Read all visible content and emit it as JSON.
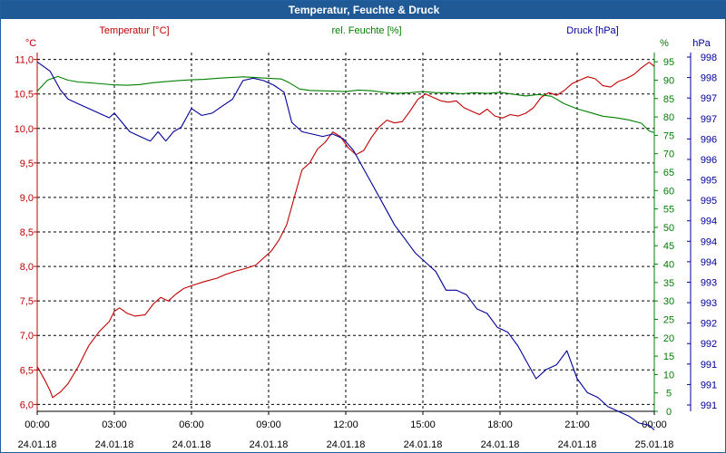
{
  "window": {
    "title": "Temperatur, Feuchte & Druck"
  },
  "chart_data": {
    "type": "line",
    "title": "Temperatur, Feuchte & Druck",
    "x_ticks": [
      {
        "time": "00:00",
        "date": "24.01.18"
      },
      {
        "time": "03:00",
        "date": "24.01.18"
      },
      {
        "time": "06:00",
        "date": "24.01.18"
      },
      {
        "time": "09:00",
        "date": "24.01.18"
      },
      {
        "time": "12:00",
        "date": "24.01.18"
      },
      {
        "time": "15:00",
        "date": "24.01.18"
      },
      {
        "time": "18:00",
        "date": "24.01.18"
      },
      {
        "time": "21:00",
        "date": "24.01.18"
      },
      {
        "time": "00:00",
        "date": "25.01.18"
      }
    ],
    "xlim_hours": [
      0,
      24
    ],
    "axes": {
      "temperature": {
        "label": "Temperatur [°C]",
        "unit": "°C",
        "color": "#c00000",
        "ylim": [
          5.9,
          11.1
        ],
        "ticks": [
          "6,0",
          "6,5",
          "7,0",
          "7,5",
          "8,0",
          "8,5",
          "9,0",
          "9,5",
          "10,0",
          "10,5",
          "11,0"
        ]
      },
      "humidity": {
        "label": "rel. Feuchte [%]",
        "unit": "%",
        "color": "#008000",
        "ylim": [
          0,
          97.5
        ],
        "ticks": [
          "0",
          "5",
          "10",
          "15",
          "20",
          "25",
          "30",
          "35",
          "40",
          "45",
          "50",
          "55",
          "60",
          "65",
          "70",
          "75",
          "80",
          "85",
          "90",
          "95"
        ]
      },
      "pressure": {
        "label": "Druck [hPa]",
        "unit": "hPa",
        "color": "#000099",
        "ylim": [
          990.6,
          998.3
        ],
        "ticks": [
          "991",
          "991",
          "991",
          "992",
          "992",
          "993",
          "993",
          "994",
          "994",
          "994",
          "995",
          "995",
          "996",
          "996",
          "997",
          "997",
          "998",
          "998"
        ]
      }
    },
    "series": [
      {
        "name": "Temperatur",
        "axis": "temperature",
        "color": "#c00000",
        "points": [
          [
            0,
            6.55
          ],
          [
            0.3,
            6.35
          ],
          [
            0.5,
            6.2
          ],
          [
            0.6,
            6.1
          ],
          [
            0.9,
            6.18
          ],
          [
            1.2,
            6.3
          ],
          [
            1.6,
            6.55
          ],
          [
            2.0,
            6.85
          ],
          [
            2.4,
            7.05
          ],
          [
            2.8,
            7.2
          ],
          [
            3.0,
            7.35
          ],
          [
            3.2,
            7.4
          ],
          [
            3.5,
            7.32
          ],
          [
            3.8,
            7.28
          ],
          [
            4.2,
            7.3
          ],
          [
            4.5,
            7.45
          ],
          [
            4.8,
            7.55
          ],
          [
            5.1,
            7.5
          ],
          [
            5.4,
            7.6
          ],
          [
            5.7,
            7.68
          ],
          [
            6.0,
            7.72
          ],
          [
            6.5,
            7.78
          ],
          [
            7.0,
            7.83
          ],
          [
            7.3,
            7.88
          ],
          [
            7.7,
            7.93
          ],
          [
            8.1,
            7.97
          ],
          [
            8.5,
            8.02
          ],
          [
            8.8,
            8.12
          ],
          [
            9.1,
            8.22
          ],
          [
            9.4,
            8.38
          ],
          [
            9.7,
            8.6
          ],
          [
            10.0,
            9.0
          ],
          [
            10.3,
            9.4
          ],
          [
            10.6,
            9.5
          ],
          [
            10.9,
            9.7
          ],
          [
            11.2,
            9.8
          ],
          [
            11.5,
            9.95
          ],
          [
            11.8,
            9.88
          ],
          [
            12.1,
            9.72
          ],
          [
            12.4,
            9.62
          ],
          [
            12.7,
            9.68
          ],
          [
            13.0,
            9.87
          ],
          [
            13.3,
            10.02
          ],
          [
            13.6,
            10.12
          ],
          [
            13.9,
            10.08
          ],
          [
            14.2,
            10.1
          ],
          [
            14.5,
            10.25
          ],
          [
            14.8,
            10.42
          ],
          [
            15.1,
            10.5
          ],
          [
            15.4,
            10.45
          ],
          [
            15.7,
            10.4
          ],
          [
            16.0,
            10.38
          ],
          [
            16.3,
            10.4
          ],
          [
            16.6,
            10.3
          ],
          [
            16.9,
            10.25
          ],
          [
            17.2,
            10.2
          ],
          [
            17.5,
            10.28
          ],
          [
            17.8,
            10.18
          ],
          [
            18.1,
            10.15
          ],
          [
            18.4,
            10.2
          ],
          [
            18.7,
            10.18
          ],
          [
            19.0,
            10.22
          ],
          [
            19.3,
            10.3
          ],
          [
            19.6,
            10.45
          ],
          [
            19.9,
            10.52
          ],
          [
            20.2,
            10.48
          ],
          [
            20.5,
            10.55
          ],
          [
            20.8,
            10.65
          ],
          [
            21.1,
            10.7
          ],
          [
            21.4,
            10.75
          ],
          [
            21.7,
            10.72
          ],
          [
            22.0,
            10.62
          ],
          [
            22.3,
            10.6
          ],
          [
            22.6,
            10.68
          ],
          [
            22.9,
            10.72
          ],
          [
            23.2,
            10.78
          ],
          [
            23.5,
            10.88
          ],
          [
            23.8,
            10.96
          ],
          [
            24.0,
            10.9
          ]
        ]
      },
      {
        "name": "rel. Feuchte",
        "axis": "humidity",
        "color": "#008000",
        "points": [
          [
            0,
            87
          ],
          [
            0.4,
            90
          ],
          [
            0.8,
            91
          ],
          [
            1.2,
            90
          ],
          [
            1.6,
            89.5
          ],
          [
            2.0,
            89.3
          ],
          [
            2.5,
            89
          ],
          [
            3.0,
            88.7
          ],
          [
            3.5,
            88.6
          ],
          [
            4.0,
            88.8
          ],
          [
            4.5,
            89.3
          ],
          [
            5.0,
            89.6
          ],
          [
            5.5,
            89.9
          ],
          [
            6.0,
            90.1
          ],
          [
            6.5,
            90.2
          ],
          [
            7.0,
            90.5
          ],
          [
            7.5,
            90.7
          ],
          [
            8.0,
            90.9
          ],
          [
            8.5,
            90.7
          ],
          [
            9.0,
            90.5
          ],
          [
            9.5,
            90.3
          ],
          [
            9.8,
            89.3
          ],
          [
            10.2,
            87.6
          ],
          [
            10.6,
            87.2
          ],
          [
            11.0,
            87.1
          ],
          [
            11.5,
            87
          ],
          [
            12.0,
            86.9
          ],
          [
            12.5,
            87.3
          ],
          [
            13.0,
            87.1
          ],
          [
            13.5,
            86.7
          ],
          [
            14.0,
            86.4
          ],
          [
            14.5,
            86.6
          ],
          [
            15.0,
            86.9
          ],
          [
            15.5,
            86.6
          ],
          [
            16.0,
            86.6
          ],
          [
            16.5,
            86.3
          ],
          [
            17.0,
            86.6
          ],
          [
            17.5,
            86.4
          ],
          [
            18.0,
            86.7
          ],
          [
            18.5,
            86.2
          ],
          [
            19.0,
            85.7
          ],
          [
            19.5,
            86.1
          ],
          [
            20.0,
            85.6
          ],
          [
            20.5,
            83.6
          ],
          [
            21.0,
            82.2
          ],
          [
            21.5,
            81.2
          ],
          [
            22.0,
            80.2
          ],
          [
            22.5,
            79.8
          ],
          [
            23.0,
            79.2
          ],
          [
            23.5,
            78.3
          ],
          [
            23.8,
            76.2
          ],
          [
            24.0,
            75.7
          ]
        ]
      },
      {
        "name": "Druck",
        "axis": "pressure",
        "color": "#000099",
        "points": [
          [
            0,
            998.1
          ],
          [
            0.5,
            997.9
          ],
          [
            0.9,
            997.5
          ],
          [
            1.2,
            997.3
          ],
          [
            1.6,
            997.2
          ],
          [
            2.0,
            997.1
          ],
          [
            2.4,
            997.0
          ],
          [
            2.8,
            996.9
          ],
          [
            3.0,
            997.0
          ],
          [
            3.3,
            996.8
          ],
          [
            3.6,
            996.6
          ],
          [
            4.0,
            996.5
          ],
          [
            4.4,
            996.4
          ],
          [
            4.7,
            996.6
          ],
          [
            5.0,
            996.4
          ],
          [
            5.3,
            996.6
          ],
          [
            5.6,
            996.7
          ],
          [
            6.0,
            997.1
          ],
          [
            6.4,
            996.95
          ],
          [
            6.8,
            997.0
          ],
          [
            7.2,
            997.15
          ],
          [
            7.6,
            997.3
          ],
          [
            8.0,
            997.7
          ],
          [
            8.4,
            997.75
          ],
          [
            8.8,
            997.7
          ],
          [
            9.2,
            997.6
          ],
          [
            9.6,
            997.45
          ],
          [
            9.9,
            996.8
          ],
          [
            10.3,
            996.6
          ],
          [
            10.7,
            996.55
          ],
          [
            11.1,
            996.5
          ],
          [
            11.5,
            996.55
          ],
          [
            11.9,
            996.45
          ],
          [
            12.3,
            996.2
          ],
          [
            12.7,
            995.8
          ],
          [
            13.1,
            995.4
          ],
          [
            13.5,
            995.0
          ],
          [
            13.9,
            994.6
          ],
          [
            14.3,
            994.3
          ],
          [
            14.7,
            994.0
          ],
          [
            15.1,
            993.8
          ],
          [
            15.5,
            993.6
          ],
          [
            15.9,
            993.2
          ],
          [
            16.3,
            993.2
          ],
          [
            16.7,
            993.1
          ],
          [
            17.1,
            992.8
          ],
          [
            17.5,
            992.7
          ],
          [
            17.9,
            992.4
          ],
          [
            18.3,
            992.3
          ],
          [
            18.7,
            992.0
          ],
          [
            19.1,
            991.6
          ],
          [
            19.4,
            991.3
          ],
          [
            19.8,
            991.5
          ],
          [
            20.2,
            991.6
          ],
          [
            20.6,
            991.9
          ],
          [
            21.0,
            991.3
          ],
          [
            21.4,
            991.0
          ],
          [
            21.8,
            990.9
          ],
          [
            22.2,
            990.7
          ],
          [
            22.6,
            990.6
          ],
          [
            23.0,
            990.5
          ],
          [
            23.4,
            990.35
          ],
          [
            23.8,
            990.3
          ],
          [
            24.0,
            990.2
          ]
        ]
      }
    ]
  }
}
